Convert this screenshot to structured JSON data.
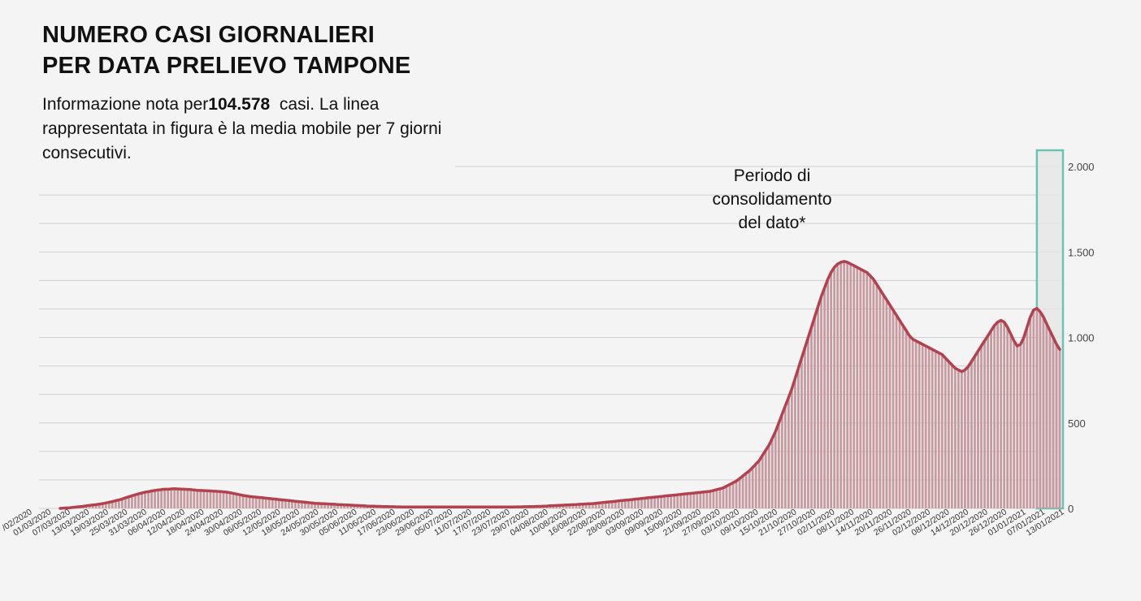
{
  "title": {
    "line1": "NUMERO CASI GIORNALIERI",
    "line2": "PER DATA PRELIEVO TAMPONE"
  },
  "description": {
    "prefix": "Informazione nota per",
    "total": "104.578",
    "suffix": "  casi. La linea rappresentata in figura è la media mobile per 7 giorni consecutivi."
  },
  "annotation": {
    "line1": "Periodo di",
    "line2": "consolidamento",
    "line3": "del dato*"
  },
  "colors": {
    "bar": "#c79aa0",
    "line": "#b2424f",
    "highlight_border": "#6dc3b3",
    "highlight_fill": "#e6e6e6",
    "grid": "#cfcfcf"
  },
  "chart_data": {
    "type": "bar",
    "series": [
      {
        "type": "bar",
        "values": [
          0,
          2,
          3,
          4,
          6,
          8,
          10,
          12,
          15,
          18,
          20,
          22,
          25,
          28,
          32,
          36,
          40,
          45,
          50,
          55,
          62,
          68,
          74,
          80,
          85,
          90,
          95,
          98,
          102,
          105,
          108,
          110,
          112,
          112,
          114,
          115,
          114,
          113,
          112,
          111,
          110,
          108,
          106,
          105,
          104,
          103,
          102,
          101,
          100,
          99,
          97,
          95,
          92,
          88,
          84,
          80,
          76,
          73,
          70,
          68,
          66,
          64,
          62,
          60,
          58,
          56,
          54,
          52,
          50,
          48,
          46,
          44,
          42,
          40,
          38,
          36,
          34,
          32,
          30,
          29,
          28,
          27,
          26,
          25,
          24,
          23,
          22,
          21,
          20,
          19,
          18,
          17,
          16,
          15,
          14,
          13,
          13,
          12,
          12,
          11,
          11,
          10,
          10,
          9,
          9,
          8,
          8,
          8,
          8,
          8,
          8,
          8,
          8,
          8,
          8,
          8,
          8,
          8,
          8,
          8,
          8,
          8,
          8,
          8,
          8,
          8,
          8,
          8,
          8,
          8,
          8,
          8,
          8,
          8,
          8,
          8,
          8,
          8,
          8,
          8,
          9,
          9,
          10,
          10,
          11,
          11,
          12,
          12,
          13,
          14,
          15,
          16,
          17,
          18,
          19,
          20,
          21,
          22,
          23,
          24,
          25,
          26,
          27,
          28,
          30,
          32,
          34,
          36,
          38,
          40,
          42,
          44,
          46,
          48,
          50,
          52,
          54,
          56,
          58,
          60,
          62,
          64,
          66,
          68,
          70,
          72,
          74,
          76,
          78,
          80,
          82,
          84,
          86,
          88,
          90,
          92,
          94,
          96,
          98,
          100,
          105,
          110,
          115,
          120,
          130,
          140,
          150,
          160,
          175,
          190,
          205,
          220,
          240,
          260,
          280,
          310,
          340,
          370,
          410,
          450,
          500,
          550,
          600,
          650,
          700,
          760,
          820,
          880,
          940,
          1000,
          1060,
          1120,
          1180,
          1240,
          1290,
          1340,
          1380,
          1410,
          1430,
          1440,
          1445,
          1440,
          1430,
          1420,
          1410,
          1400,
          1390,
          1380,
          1360,
          1340,
          1310,
          1280,
          1250,
          1220,
          1190,
          1160,
          1130,
          1100,
          1070,
          1040,
          1010,
          990,
          980,
          970,
          960,
          950,
          940,
          930,
          920,
          910,
          900,
          880,
          860,
          840,
          820,
          810,
          800,
          810,
          830,
          860,
          890,
          920,
          950,
          980,
          1010,
          1040,
          1070,
          1090,
          1100,
          1090,
          1060,
          1020,
          980,
          950,
          960,
          1000,
          1060,
          1120,
          1160,
          1170,
          1150,
          1120,
          1080,
          1040,
          1000,
          960,
          930
        ]
      },
      {
        "type": "line",
        "values": [
          0,
          2,
          3,
          4,
          6,
          8,
          10,
          12,
          15,
          18,
          20,
          22,
          25,
          28,
          32,
          36,
          40,
          45,
          50,
          55,
          62,
          68,
          74,
          80,
          85,
          90,
          95,
          98,
          102,
          105,
          108,
          110,
          112,
          112,
          114,
          115,
          114,
          113,
          112,
          111,
          110,
          108,
          106,
          105,
          104,
          103,
          102,
          101,
          100,
          99,
          97,
          95,
          92,
          88,
          84,
          80,
          76,
          73,
          70,
          68,
          66,
          64,
          62,
          60,
          58,
          56,
          54,
          52,
          50,
          48,
          46,
          44,
          42,
          40,
          38,
          36,
          34,
          32,
          30,
          29,
          28,
          27,
          26,
          25,
          24,
          23,
          22,
          21,
          20,
          19,
          18,
          17,
          16,
          15,
          14,
          13,
          13,
          12,
          12,
          11,
          11,
          10,
          10,
          9,
          9,
          8,
          8,
          8,
          8,
          8,
          8,
          8,
          8,
          8,
          8,
          8,
          8,
          8,
          8,
          8,
          8,
          8,
          8,
          8,
          8,
          8,
          8,
          8,
          8,
          8,
          8,
          8,
          8,
          8,
          8,
          8,
          8,
          8,
          8,
          8,
          9,
          9,
          10,
          10,
          11,
          11,
          12,
          12,
          13,
          14,
          15,
          16,
          17,
          18,
          19,
          20,
          21,
          22,
          23,
          24,
          25,
          26,
          27,
          28,
          30,
          32,
          34,
          36,
          38,
          40,
          42,
          44,
          46,
          48,
          50,
          52,
          54,
          56,
          58,
          60,
          62,
          64,
          66,
          68,
          70,
          72,
          74,
          76,
          78,
          80,
          82,
          84,
          86,
          88,
          90,
          92,
          94,
          96,
          98,
          100,
          105,
          110,
          115,
          120,
          130,
          140,
          150,
          160,
          175,
          190,
          205,
          220,
          240,
          260,
          280,
          310,
          340,
          370,
          410,
          450,
          500,
          550,
          600,
          650,
          700,
          760,
          820,
          880,
          940,
          1000,
          1060,
          1120,
          1180,
          1240,
          1290,
          1340,
          1380,
          1410,
          1430,
          1440,
          1445,
          1440,
          1430,
          1420,
          1410,
          1400,
          1390,
          1380,
          1360,
          1340,
          1310,
          1280,
          1250,
          1220,
          1190,
          1160,
          1130,
          1100,
          1070,
          1040,
          1010,
          990,
          980,
          970,
          960,
          950,
          940,
          930,
          920,
          910,
          900,
          880,
          860,
          840,
          820,
          810,
          800,
          810,
          830,
          860,
          890,
          920,
          950,
          980,
          1010,
          1040,
          1070,
          1090,
          1100,
          1090,
          1060,
          1020,
          980,
          950,
          960,
          1000,
          1060,
          1120,
          1160,
          1170,
          1150,
          1120,
          1080,
          1040,
          1000,
          960,
          930
        ]
      }
    ],
    "x_tick_labels": [
      "/02/2020",
      "01/03/2020",
      "07/03/2020",
      "13/03/2020",
      "19/03/2020",
      "25/03/2020",
      "31/03/2020",
      "06/04/2020",
      "12/04/2020",
      "18/04/2020",
      "24/04/2020",
      "30/04/2020",
      "06/05/2020",
      "12/05/2020",
      "18/05/2020",
      "24/05/2020",
      "30/05/2020",
      "05/06/2020",
      "11/06/2020",
      "17/06/2020",
      "23/06/2020",
      "29/06/2020",
      "05/07/2020",
      "11/07/2020",
      "17/07/2020",
      "23/07/2020",
      "29/07/2020",
      "04/08/2020",
      "10/08/2020",
      "16/08/2020",
      "22/08/2020",
      "28/08/2020",
      "03/09/2020",
      "09/09/2020",
      "15/09/2020",
      "21/09/2020",
      "27/09/2020",
      "03/10/2020",
      "09/10/2020",
      "15/10/2020",
      "21/10/2020",
      "27/10/2020",
      "02/11/2020",
      "08/11/2020",
      "14/11/2020",
      "20/11/2020",
      "26/11/2020",
      "02/12/2020",
      "08/12/2020",
      "14/12/2020",
      "20/12/2020",
      "26/12/2020",
      "01/01/2021",
      "07/01/2021",
      "13/01/2021"
    ],
    "y_ticks": [
      0,
      500,
      "1.000",
      "1.500",
      "2.000"
    ],
    "ylim": [
      0,
      2000
    ],
    "grid": true,
    "highlight_last_days": 7
  }
}
